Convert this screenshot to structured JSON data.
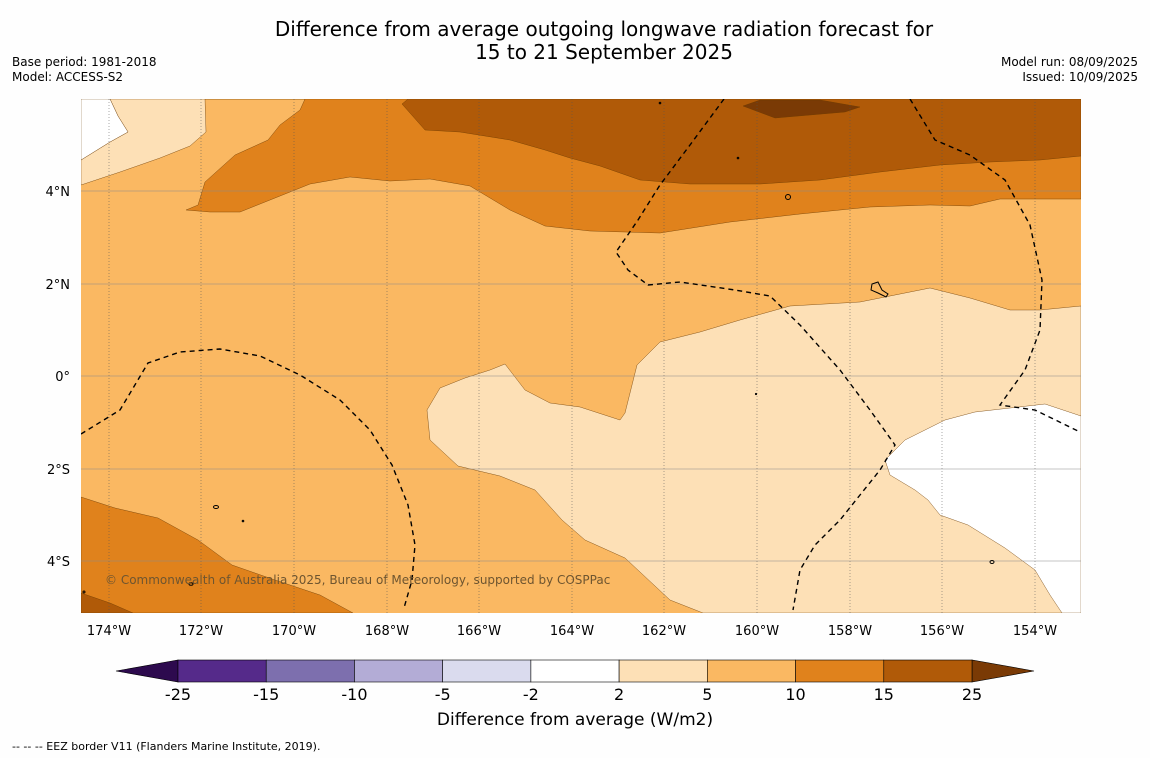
{
  "title": {
    "line1": "Difference from average outgoing longwave radiation forecast for",
    "line2": "15 to 21 September 2025"
  },
  "meta_left": {
    "base_period": "Base period: 1981-2018",
    "model": "Model: ACCESS-S2"
  },
  "meta_right": {
    "model_run": "Model run: 08/09/2025",
    "issued": "Issued: 10/09/2025"
  },
  "map": {
    "lat_labels": [
      "4°N",
      "2°N",
      "0°",
      "2°S",
      "4°S"
    ],
    "lon_labels": [
      "174°W",
      "172°W",
      "170°W",
      "168°W",
      "166°W",
      "164°W",
      "162°W",
      "160°W",
      "158°W",
      "156°W",
      "154°W"
    ],
    "copyright": "© Commonwealth of Australia 2025, Bureau of Meteorology, supported by COSPPac"
  },
  "colorbar": {
    "title": "Difference from average (W/m2)",
    "ticks": [
      "-25",
      "-15",
      "-10",
      "-5",
      "-2",
      "2",
      "5",
      "10",
      "15",
      "25"
    ],
    "colors": [
      "#552a8a",
      "#7d6fae",
      "#b3acd6",
      "#dadbee",
      "#ffffff",
      "#fde0b6",
      "#fab862",
      "#e0821c",
      "#b05a08"
    ],
    "under_color": "#2d0a4e",
    "over_color": "#7a3a05"
  },
  "footnote": "--  --  -- EEZ border V11 (Flanders Marine Institute, 2019)."
}
